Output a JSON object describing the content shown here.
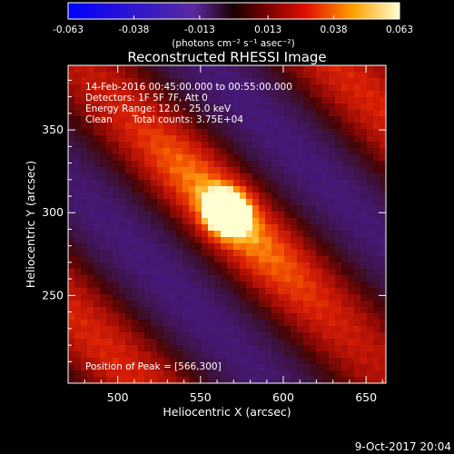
{
  "chart_data": {
    "type": "heatmap",
    "title": "Reconstructed RHESSI Image",
    "xlabel": "Heliocentric X (arcsec)",
    "ylabel": "Heliocentric Y (arcsec)",
    "xlim": [
      470,
      662
    ],
    "ylim": [
      197,
      389
    ],
    "x_ticks": [
      "500",
      "550",
      "600",
      "650"
    ],
    "y_ticks": [
      "250",
      "300",
      "350"
    ],
    "x_tick_values": [
      500,
      550,
      600,
      650
    ],
    "y_tick_values": [
      250,
      300,
      350
    ],
    "peak": [
      566,
      300
    ],
    "colorbar": {
      "ticks": [
        "-0.063",
        "-0.038",
        "-0.013",
        "0.013",
        "0.038",
        "0.063"
      ],
      "tick_values": [
        -0.063,
        -0.038,
        -0.013,
        0.013,
        0.038,
        0.063
      ],
      "min": -0.063,
      "max": 0.063,
      "unit_label": "(photons cm⁻² s⁻¹ asec⁻²)"
    },
    "annotations": {
      "time_range": "14-Feb-2016 00:45:00.000 to 00:55:00.000",
      "detectors": "Detectors: 1F 5F 7F, Att 0",
      "energy": "Energy Range: 12.0 - 25.0 keV",
      "method": "Clean",
      "counts": "Total counts: 3.75E+04",
      "peak_text": "Position of Peak = [566,300]"
    }
  },
  "footer": {
    "date": "9-Oct-2017 20:04"
  }
}
